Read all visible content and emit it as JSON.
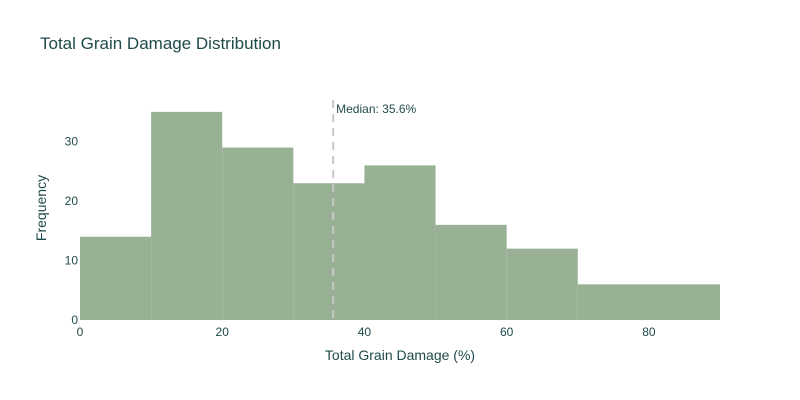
{
  "chart_data": {
    "type": "bar",
    "title": "Total Grain Damage Distribution",
    "xlabel": "Total Grain Damage (%)",
    "ylabel": "Frequency",
    "bins": [
      {
        "start": 0,
        "end": 10,
        "count": 14
      },
      {
        "start": 10,
        "end": 20,
        "count": 35
      },
      {
        "start": 20,
        "end": 30,
        "count": 29
      },
      {
        "start": 30,
        "end": 40,
        "count": 23
      },
      {
        "start": 40,
        "end": 50,
        "count": 26
      },
      {
        "start": 50,
        "end": 60,
        "count": 16
      },
      {
        "start": 60,
        "end": 70,
        "count": 12
      },
      {
        "start": 70,
        "end": 90,
        "count": 6
      }
    ],
    "xlim": [
      0,
      90
    ],
    "ylim": [
      0,
      37
    ],
    "xticks": [
      0,
      20,
      40,
      60,
      80
    ],
    "yticks": [
      0,
      10,
      20,
      30
    ],
    "bar_color": "#98b094",
    "median": {
      "value": 35.6,
      "label": "Median: 35.6%",
      "color": "#c8c8c8"
    },
    "grid": false
  }
}
